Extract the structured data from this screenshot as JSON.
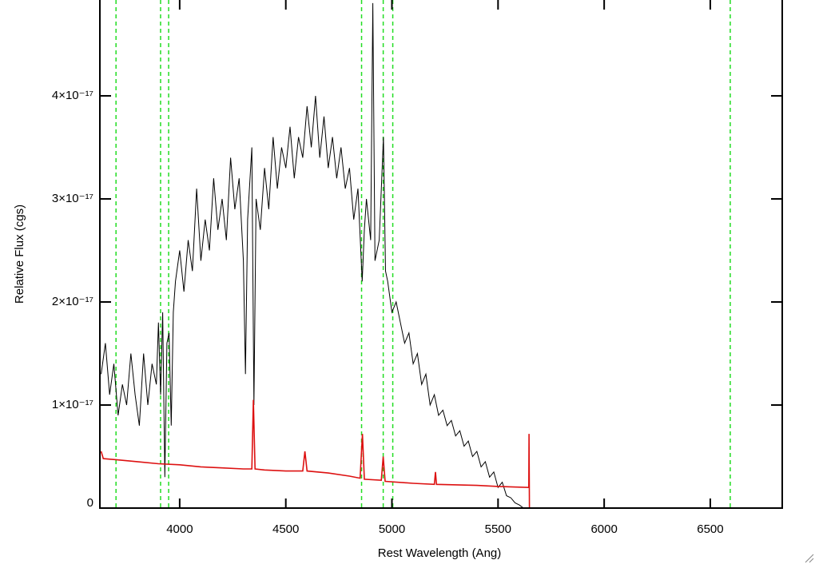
{
  "chart_data": {
    "type": "line",
    "xlabel": "Rest Wavelength (Ang)",
    "ylabel": "Relative Flux (cgs)",
    "xlim": [
      3624,
      6839
    ],
    "ylim": [
      0,
      4.93e-17
    ],
    "xticks": [
      4000,
      4500,
      5000,
      5500,
      6000,
      6500
    ],
    "yticks": [
      0,
      {
        "value": 1e-17,
        "label": "1×10⁻¹⁷"
      },
      {
        "value": 2e-17,
        "label": "2×10⁻¹⁷"
      },
      {
        "value": 3e-17,
        "label": "3×10⁻¹⁷"
      },
      {
        "value": 4e-17,
        "label": "4×10⁻¹⁷"
      }
    ],
    "vlines": {
      "color": "#22dd22",
      "x": [
        3700,
        3910,
        3948,
        4857,
        4959,
        5004,
        6594
      ]
    },
    "series": [
      {
        "color": "#000000",
        "x": [
          3630,
          3650,
          3670,
          3690,
          3710,
          3730,
          3750,
          3770,
          3790,
          3810,
          3830,
          3850,
          3870,
          3890,
          3900,
          3910,
          3920,
          3930,
          3940,
          3950,
          3960,
          3970,
          3980,
          4000,
          4020,
          4040,
          4060,
          4080,
          4100,
          4120,
          4140,
          4160,
          4180,
          4200,
          4220,
          4240,
          4260,
          4280,
          4300,
          4310,
          4320,
          4340,
          4350,
          4360,
          4380,
          4400,
          4420,
          4440,
          4460,
          4480,
          4500,
          4520,
          4540,
          4560,
          4580,
          4600,
          4620,
          4640,
          4660,
          4680,
          4700,
          4720,
          4740,
          4760,
          4780,
          4800,
          4820,
          4840,
          4860,
          4870,
          4880,
          4900,
          4910,
          4920,
          4940,
          4960,
          4970,
          4980,
          5000,
          5020,
          5040,
          5060,
          5080,
          5100,
          5120,
          5140,
          5160,
          5180,
          5200,
          5220,
          5240,
          5260,
          5280,
          5300,
          5320,
          5340,
          5360,
          5380,
          5400,
          5420,
          5440,
          5460,
          5480,
          5500,
          5520,
          5540,
          5560,
          5580,
          5600,
          5620,
          5640
        ],
        "values": [
          1.3e-17,
          1.6e-17,
          1.1e-17,
          1.4e-17,
          9e-18,
          1.2e-17,
          1e-17,
          1.5e-17,
          1.1e-17,
          8e-18,
          1.5e-17,
          1e-17,
          1.4e-17,
          1.2e-17,
          1.8e-17,
          1.1e-17,
          1.9e-17,
          3e-18,
          1.6e-17,
          1.7e-17,
          8e-18,
          1.9e-17,
          2.2e-17,
          2.5e-17,
          2.1e-17,
          2.6e-17,
          2.3e-17,
          3.1e-17,
          2.4e-17,
          2.8e-17,
          2.5e-17,
          3.2e-17,
          2.7e-17,
          3e-17,
          2.6e-17,
          3.4e-17,
          2.9e-17,
          3.2e-17,
          2.4e-17,
          1.3e-17,
          2.8e-17,
          3.5e-17,
          1e-17,
          3e-17,
          2.7e-17,
          3.3e-17,
          2.9e-17,
          3.6e-17,
          3.1e-17,
          3.5e-17,
          3.3e-17,
          3.7e-17,
          3.2e-17,
          3.6e-17,
          3.4e-17,
          3.9e-17,
          3.5e-17,
          4e-17,
          3.4e-17,
          3.8e-17,
          3.3e-17,
          3.6e-17,
          3.2e-17,
          3.5e-17,
          3.1e-17,
          3.3e-17,
          2.8e-17,
          3.1e-17,
          2.2e-17,
          2.7e-17,
          3e-17,
          2.6e-17,
          4.9e-17,
          2.4e-17,
          2.6e-17,
          3.6e-17,
          2.3e-17,
          2.2e-17,
          1.9e-17,
          2e-17,
          1.8e-17,
          1.6e-17,
          1.7e-17,
          1.4e-17,
          1.5e-17,
          1.2e-17,
          1.3e-17,
          1e-17,
          1.1e-17,
          9e-18,
          9.5e-18,
          8e-18,
          8.5e-18,
          7e-18,
          7.5e-18,
          6e-18,
          6.5e-18,
          5e-18,
          5.5e-18,
          4e-18,
          4.5e-18,
          3e-18,
          3.5e-18,
          2e-18,
          2.5e-18,
          1.2e-18,
          1e-18,
          5e-19,
          3e-19,
          0,
          0
        ]
      },
      {
        "color": "#dd1111",
        "x": [
          3630,
          3640,
          3700,
          3800,
          3900,
          4000,
          4100,
          4200,
          4300,
          4340,
          4347,
          4355,
          4400,
          4500,
          4580,
          4590,
          4600,
          4700,
          4800,
          4850,
          4861,
          4870,
          4950,
          4959,
          4968,
          5100,
          5200,
          5205,
          5210,
          5400,
          5500,
          5645,
          5646,
          5648,
          6839
        ],
        "values": [
          5.5e-18,
          4.8e-18,
          4.7e-18,
          4.5e-18,
          4.3e-18,
          4.2e-18,
          4e-18,
          3.9e-18,
          3.8e-18,
          3.8e-18,
          1.05e-17,
          3.8e-18,
          3.7e-18,
          3.6e-18,
          3.6e-18,
          5.5e-18,
          3.6e-18,
          3.4e-18,
          3.1e-18,
          2.9e-18,
          7.2e-18,
          2.8e-18,
          2.7e-18,
          5e-18,
          2.6e-18,
          2.4e-18,
          2.3e-18,
          3.5e-18,
          2.3e-18,
          2.2e-18,
          2.1e-18,
          2e-18,
          7.2e-18,
          0,
          0
        ]
      }
    ]
  }
}
